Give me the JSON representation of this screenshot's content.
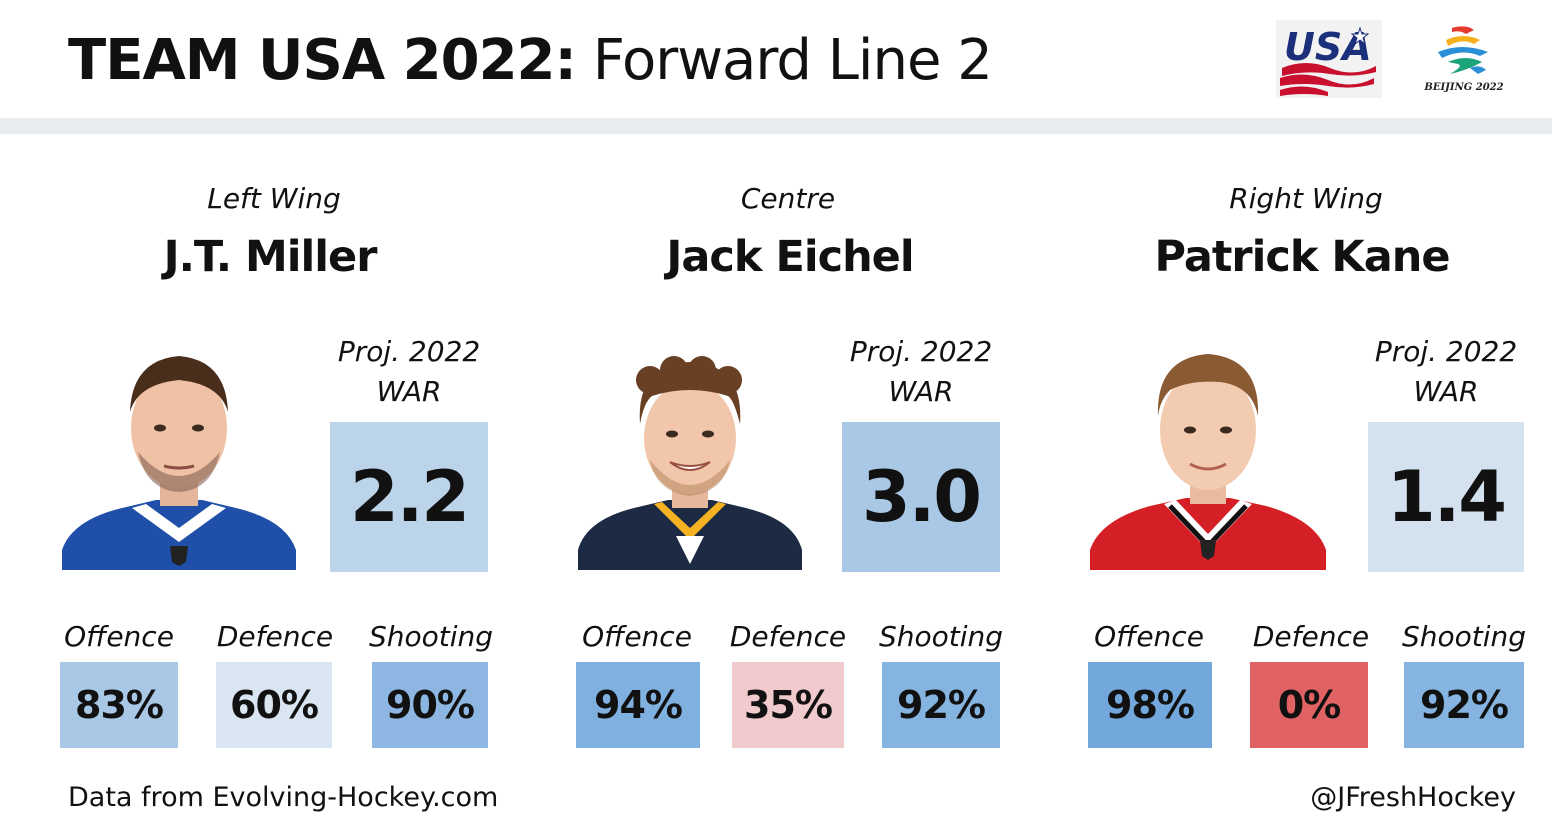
{
  "header": {
    "title_bold": "TEAM USA 2022:",
    "title_light": " Forward Line 2"
  },
  "logos": {
    "usa": "USA",
    "beijing_caption": "BEIJING 2022"
  },
  "war_label_line1": "Proj. 2022",
  "war_label_line2": "WAR",
  "stat_labels": {
    "offence": "Offence",
    "defence": "Defence",
    "shooting": "Shooting"
  },
  "players": [
    {
      "position": "Left Wing",
      "name": "J.T. Miller",
      "war": "2.2",
      "war_color": "#bcd4ea",
      "jersey_color": "#1f4fa8",
      "stats": [
        {
          "value": "83%",
          "color": "#a9c8e6"
        },
        {
          "value": "60%",
          "color": "#d9e5f1"
        },
        {
          "value": "90%",
          "color": "#8db7e2"
        }
      ]
    },
    {
      "position": "Centre",
      "name": "Jack Eichel",
      "war": "3.0",
      "war_color": "#a8c8e6",
      "jersey_color": "#1c2a44",
      "stats": [
        {
          "value": "94%",
          "color": "#7fb0df"
        },
        {
          "value": "35%",
          "color": "#f0cacc"
        },
        {
          "value": "92%",
          "color": "#86b4e0"
        }
      ]
    },
    {
      "position": "Right Wing",
      "name": "Patrick Kane",
      "war": "1.4",
      "war_color": "#d4e2f0",
      "jersey_color": "#d51f26",
      "stats": [
        {
          "value": "98%",
          "color": "#73a8dc"
        },
        {
          "value": "0%",
          "color": "#e06262"
        },
        {
          "value": "92%",
          "color": "#86b4e0"
        }
      ]
    }
  ],
  "footer": {
    "source": "Data from Evolving-Hockey.com",
    "handle": "@JFreshHockey"
  }
}
